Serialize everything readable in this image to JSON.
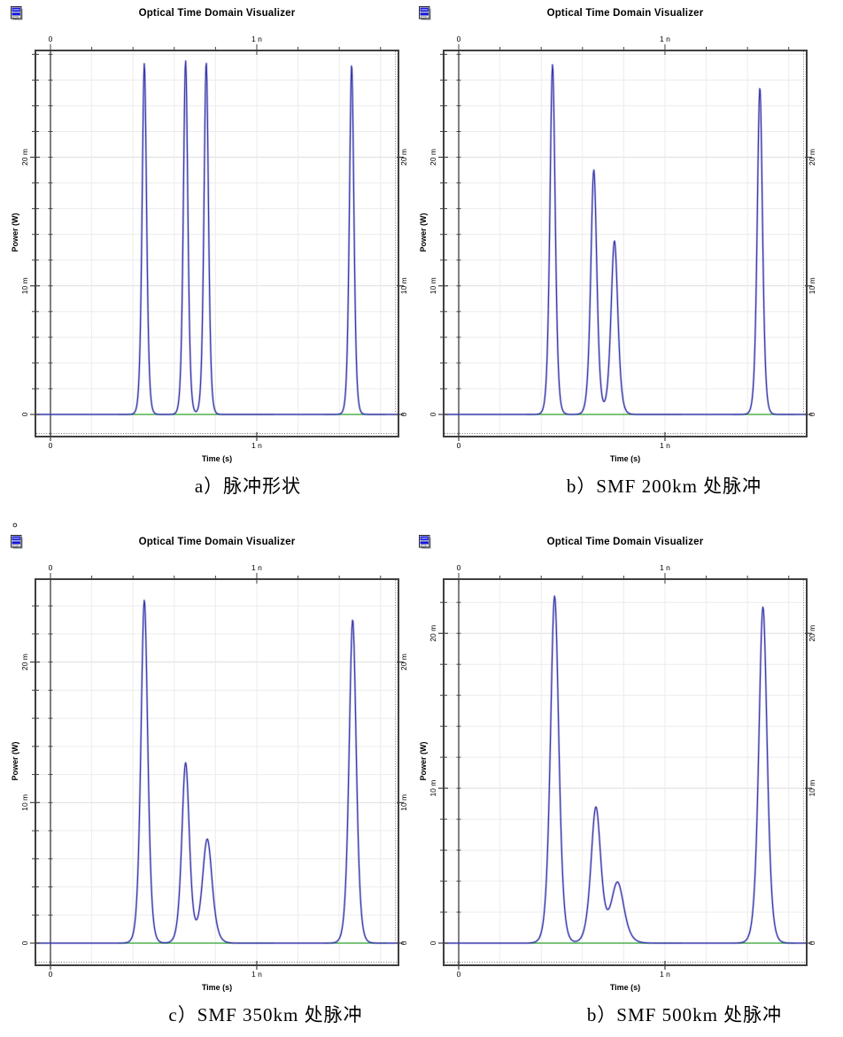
{
  "page": {
    "background": "#ffffff"
  },
  "colors": {
    "trace_blue": "#3a3aad",
    "baseline_green": "#2ca02c",
    "grid_light": "#ececec",
    "grid_major": "#dedede",
    "axis_dark": "#3f3f3f",
    "icon_blue": "#1515d8"
  },
  "stray_period": "。",
  "captions": [
    {
      "text": "a）脉冲形状"
    },
    {
      "text": "b）SMF 200km 处脉冲"
    },
    {
      "text": "c）SMF 350km 处脉冲"
    },
    {
      "text": "b）SMF 500km 处脉冲"
    }
  ],
  "chart_data": [
    {
      "type": "line",
      "title": "Optical Time Domain Visualizer",
      "xlabel": "Time (s)",
      "ylabel": "Power (W)",
      "x_unit": "ns",
      "y_unit": "mW",
      "x_range": [
        -0.073,
        1.687
      ],
      "y_range": [
        0,
        28.3
      ],
      "x_ticks": [
        {
          "v": 0,
          "label": "0"
        },
        {
          "v": 1,
          "label": "1 n"
        }
      ],
      "y_ticks": [
        {
          "v": 0,
          "label": "0"
        },
        {
          "v": 10,
          "label": "10 m"
        },
        {
          "v": 20,
          "label": "20 m"
        }
      ],
      "grid": {
        "x_step": 0.2,
        "y_step": 2
      },
      "baseline_segments": [
        [
          0.33,
          1.08
        ],
        [
          1.33,
          1.63
        ]
      ],
      "peaks": [
        {
          "t": 0.455,
          "p": 27.3,
          "w": 0.0145
        },
        {
          "t": 0.655,
          "p": 27.5,
          "w": 0.0145
        },
        {
          "t": 0.755,
          "p": 27.4,
          "w": 0.0145
        },
        {
          "t": 1.46,
          "p": 27.2,
          "w": 0.0145
        }
      ]
    },
    {
      "type": "line",
      "title": "Optical Time Domain Visualizer",
      "xlabel": "Time (s)",
      "ylabel": "Power (W)",
      "x_unit": "ns",
      "y_unit": "mW",
      "x_range": [
        -0.073,
        1.687
      ],
      "y_range": [
        0,
        28.3
      ],
      "x_ticks": [
        {
          "v": 0,
          "label": "0"
        },
        {
          "v": 1,
          "label": "1 n"
        }
      ],
      "y_ticks": [
        {
          "v": 0,
          "label": "0"
        },
        {
          "v": 10,
          "label": "10 m"
        },
        {
          "v": 20,
          "label": "20 m"
        }
      ],
      "grid": {
        "x_step": 0.2,
        "y_step": 2
      },
      "baseline_segments": [
        [
          0.33,
          1.08
        ],
        [
          1.33,
          1.63
        ]
      ],
      "peaks": [
        {
          "t": 0.455,
          "p": 27.2,
          "w": 0.017
        },
        {
          "t": 0.655,
          "p": 19.0,
          "w": 0.0195
        },
        {
          "t": 0.755,
          "p": 13.5,
          "w": 0.022
        },
        {
          "t": 1.46,
          "p": 25.4,
          "w": 0.017
        }
      ]
    },
    {
      "type": "line",
      "title": "Optical Time Domain Visualizer",
      "xlabel": "Time (s)",
      "ylabel": "Power (W)",
      "x_unit": "ns",
      "y_unit": "mW",
      "x_range": [
        -0.073,
        1.687
      ],
      "y_range": [
        0,
        25.9
      ],
      "x_ticks": [
        {
          "v": 0,
          "label": "0"
        },
        {
          "v": 1,
          "label": "1 n"
        }
      ],
      "y_ticks": [
        {
          "v": 0,
          "label": "0"
        },
        {
          "v": 10,
          "label": "10 m"
        },
        {
          "v": 20,
          "label": "20 m"
        }
      ],
      "grid": {
        "x_step": 0.2,
        "y_step": 2
      },
      "baseline_segments": [
        [
          0.33,
          1.08
        ],
        [
          1.33,
          1.63
        ]
      ],
      "peaks": [
        {
          "t": 0.455,
          "p": 24.4,
          "w": 0.022
        },
        {
          "t": 0.655,
          "p": 12.8,
          "w": 0.0243
        },
        {
          "t": 0.76,
          "p": 7.4,
          "w": 0.0316
        },
        {
          "t": 1.465,
          "p": 23.0,
          "w": 0.023
        }
      ]
    },
    {
      "type": "line",
      "title": "Optical Time Domain Visualizer",
      "xlabel": "Time (s)",
      "ylabel": "Power (W)",
      "x_unit": "ns",
      "y_unit": "mW",
      "x_range": [
        -0.073,
        1.687
      ],
      "y_range": [
        0,
        23.5
      ],
      "x_ticks": [
        {
          "v": 0,
          "label": "0"
        },
        {
          "v": 1,
          "label": "1 n"
        }
      ],
      "y_ticks": [
        {
          "v": 0,
          "label": "0"
        },
        {
          "v": 10,
          "label": "10 m"
        },
        {
          "v": 20,
          "label": "20 m"
        }
      ],
      "grid": {
        "x_step": 0.2,
        "y_step": 2
      },
      "baseline_segments": [
        [
          0.33,
          1.08
        ],
        [
          1.33,
          1.63
        ]
      ],
      "peaks": [
        {
          "t": 0.465,
          "p": 22.4,
          "w": 0.0268
        },
        {
          "t": 0.665,
          "p": 8.7,
          "w": 0.0316
        },
        {
          "t": 0.77,
          "p": 3.9,
          "w": 0.0414
        },
        {
          "t": 1.475,
          "p": 21.7,
          "w": 0.0268
        }
      ]
    }
  ]
}
